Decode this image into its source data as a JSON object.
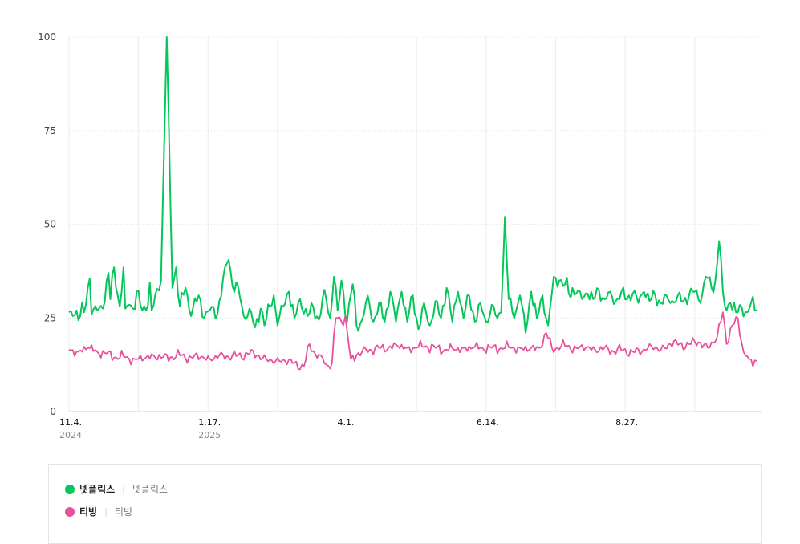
{
  "chart_data": {
    "type": "line",
    "ylim": [
      0,
      100
    ],
    "yticks": [
      "0",
      "25",
      "50",
      "75",
      "100"
    ],
    "xtick_labels": [
      {
        "label": "11.4.",
        "sub": "2024",
        "index": 0
      },
      {
        "label": "1.17.",
        "sub": "2025",
        "index": 74
      },
      {
        "label": "4.1.",
        "sub": "",
        "index": 148
      },
      {
        "label": "6.14.",
        "sub": "",
        "index": 222
      },
      {
        "label": "8.27.",
        "sub": "",
        "index": 296
      }
    ],
    "num_points": 367,
    "grid": true,
    "series": [
      {
        "name": "넷플릭스",
        "color": "#03c75a",
        "anchors": [
          [
            0,
            26.5
          ],
          [
            2,
            25.5
          ],
          [
            4,
            27
          ],
          [
            6,
            25.5
          ],
          [
            8,
            26.5
          ],
          [
            11,
            35.5
          ],
          [
            12,
            26
          ],
          [
            15,
            27
          ],
          [
            18,
            27.5
          ],
          [
            21,
            37
          ],
          [
            22,
            30
          ],
          [
            24,
            38.5
          ],
          [
            27,
            28
          ],
          [
            29,
            38.5
          ],
          [
            30,
            27.5
          ],
          [
            32,
            28.5
          ],
          [
            34,
            27.5
          ],
          [
            36,
            32
          ],
          [
            39,
            27
          ],
          [
            41,
            27
          ],
          [
            43,
            34.5
          ],
          [
            44,
            27
          ],
          [
            49,
            35
          ],
          [
            52,
            100
          ],
          [
            55,
            33
          ],
          [
            57,
            38.5
          ],
          [
            59,
            28
          ],
          [
            62,
            33
          ],
          [
            65,
            25.5
          ],
          [
            69,
            31
          ],
          [
            72,
            25
          ],
          [
            76,
            28
          ],
          [
            79,
            26
          ],
          [
            83,
            38.5
          ],
          [
            85,
            40.5
          ],
          [
            87,
            33.5
          ],
          [
            90,
            33.5
          ],
          [
            93,
            25.5
          ],
          [
            96,
            27.5
          ],
          [
            99,
            22.5
          ],
          [
            102,
            27.5
          ],
          [
            104,
            23
          ],
          [
            109,
            31
          ],
          [
            111,
            23
          ],
          [
            114,
            28
          ],
          [
            117,
            32
          ],
          [
            120,
            25
          ],
          [
            123,
            30
          ],
          [
            127,
            25.5
          ],
          [
            130,
            28
          ],
          [
            133,
            24.5
          ],
          [
            136,
            32.5
          ],
          [
            139,
            25
          ],
          [
            141,
            36
          ],
          [
            143,
            27
          ],
          [
            145,
            35
          ],
          [
            148,
            24
          ],
          [
            151,
            34
          ],
          [
            153,
            23
          ],
          [
            156,
            24.5
          ],
          [
            159,
            31
          ],
          [
            162,
            24
          ],
          [
            165,
            29
          ],
          [
            168,
            24
          ],
          [
            171,
            32
          ],
          [
            174,
            24
          ],
          [
            177,
            32
          ],
          [
            180,
            24
          ],
          [
            183,
            31
          ],
          [
            186,
            22
          ],
          [
            189,
            29
          ],
          [
            192,
            23
          ],
          [
            195,
            29.5
          ],
          [
            198,
            25
          ],
          [
            201,
            33
          ],
          [
            204,
            24
          ],
          [
            207,
            32
          ],
          [
            210,
            25
          ],
          [
            213,
            31
          ],
          [
            216,
            24
          ],
          [
            219,
            29
          ],
          [
            222,
            24
          ],
          [
            225,
            28.5
          ],
          [
            228,
            25
          ],
          [
            230,
            26.5
          ],
          [
            232,
            52
          ],
          [
            234,
            30
          ],
          [
            237,
            25
          ],
          [
            240,
            31
          ],
          [
            243,
            21
          ],
          [
            246,
            32
          ],
          [
            249,
            25
          ],
          [
            252,
            31
          ],
          [
            255,
            23
          ],
          [
            258,
            36
          ],
          [
            261,
            35
          ],
          [
            264,
            34
          ],
          [
            266,
            31.5
          ],
          [
            268,
            33
          ],
          [
            270,
            31.5
          ],
          [
            273,
            30
          ],
          [
            276,
            31.5
          ],
          [
            279,
            30
          ],
          [
            282,
            32.5
          ],
          [
            285,
            30
          ],
          [
            288,
            32
          ],
          [
            291,
            29.5
          ],
          [
            294,
            32
          ],
          [
            297,
            30
          ],
          [
            300,
            31.5
          ],
          [
            303,
            29
          ],
          [
            306,
            32
          ],
          [
            309,
            29.5
          ],
          [
            312,
            31
          ],
          [
            315,
            29
          ],
          [
            318,
            31
          ],
          [
            321,
            29.5
          ],
          [
            324,
            31
          ],
          [
            327,
            29.5
          ],
          [
            330,
            31
          ],
          [
            333,
            32
          ],
          [
            336,
            29
          ],
          [
            339,
            36
          ],
          [
            342,
            33
          ],
          [
            344,
            35
          ],
          [
            346,
            45.5
          ],
          [
            348,
            32
          ],
          [
            350,
            27
          ],
          [
            352,
            29
          ],
          [
            355,
            26.5
          ],
          [
            358,
            28
          ],
          [
            361,
            26.5
          ],
          [
            363,
            29
          ],
          [
            365,
            27
          ],
          [
            366,
            27
          ]
        ],
        "jitter": 3.2
      },
      {
        "name": "티빙",
        "color": "#e8509d",
        "anchors": [
          [
            0,
            16.5
          ],
          [
            5,
            16
          ],
          [
            10,
            17
          ],
          [
            15,
            16
          ],
          [
            20,
            15.5
          ],
          [
            25,
            14.5
          ],
          [
            30,
            14.5
          ],
          [
            35,
            14
          ],
          [
            40,
            14
          ],
          [
            45,
            15
          ],
          [
            50,
            14.5
          ],
          [
            55,
            14.5
          ],
          [
            60,
            15
          ],
          [
            65,
            14.5
          ],
          [
            70,
            14.5
          ],
          [
            75,
            14
          ],
          [
            80,
            15
          ],
          [
            85,
            14.5
          ],
          [
            90,
            15
          ],
          [
            95,
            15.5
          ],
          [
            100,
            15
          ],
          [
            105,
            14
          ],
          [
            110,
            13.5
          ],
          [
            115,
            13.5
          ],
          [
            120,
            13
          ],
          [
            125,
            12
          ],
          [
            128,
            18
          ],
          [
            131,
            15.5
          ],
          [
            134,
            15
          ],
          [
            137,
            12.5
          ],
          [
            140,
            13
          ],
          [
            142,
            25
          ],
          [
            145,
            24
          ],
          [
            147,
            25.5
          ],
          [
            150,
            14
          ],
          [
            153,
            15
          ],
          [
            156,
            16
          ],
          [
            160,
            16.5
          ],
          [
            165,
            17
          ],
          [
            170,
            17
          ],
          [
            175,
            17.5
          ],
          [
            180,
            17
          ],
          [
            185,
            17
          ],
          [
            190,
            17.5
          ],
          [
            195,
            17
          ],
          [
            200,
            16.5
          ],
          [
            205,
            16.5
          ],
          [
            210,
            17
          ],
          [
            215,
            17
          ],
          [
            220,
            17
          ],
          [
            225,
            17
          ],
          [
            230,
            17
          ],
          [
            235,
            17
          ],
          [
            240,
            17
          ],
          [
            245,
            16.5
          ],
          [
            250,
            17
          ],
          [
            254,
            21
          ],
          [
            257,
            17
          ],
          [
            260,
            17
          ],
          [
            265,
            17.5
          ],
          [
            270,
            17
          ],
          [
            275,
            17
          ],
          [
            280,
            16.5
          ],
          [
            285,
            17
          ],
          [
            290,
            16
          ],
          [
            295,
            16.5
          ],
          [
            300,
            16
          ],
          [
            305,
            16
          ],
          [
            310,
            17.5
          ],
          [
            315,
            16.5
          ],
          [
            320,
            18
          ],
          [
            325,
            18
          ],
          [
            330,
            18
          ],
          [
            335,
            18.5
          ],
          [
            340,
            17
          ],
          [
            345,
            20
          ],
          [
            348,
            26.5
          ],
          [
            350,
            18
          ],
          [
            353,
            23
          ],
          [
            356,
            25
          ],
          [
            359,
            16
          ],
          [
            362,
            14
          ],
          [
            366,
            13.5
          ]
        ],
        "jitter": 2.3
      }
    ]
  },
  "legend": [
    {
      "name": "넷플릭스",
      "sub": "넷플릭스",
      "color": "#03c75a"
    },
    {
      "name": "티빙",
      "sub": "티빙",
      "color": "#e8509d"
    }
  ]
}
